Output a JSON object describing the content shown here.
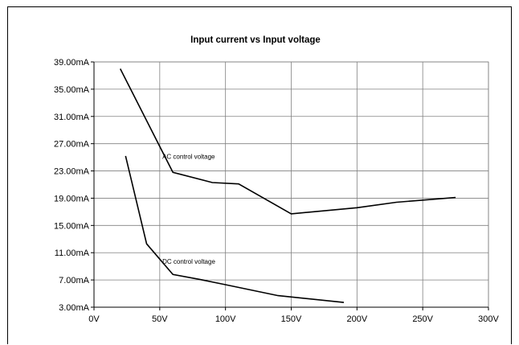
{
  "chart_data": {
    "type": "line",
    "title": "Input current vs Input voltage",
    "xlabel": "",
    "ylabel": "",
    "xlim": [
      0,
      300
    ],
    "ylim": [
      3,
      39
    ],
    "x_ticks": [
      0,
      50,
      100,
      150,
      200,
      250,
      300
    ],
    "x_tick_labels": [
      "0V",
      "50V",
      "100V",
      "150V",
      "200V",
      "250V",
      "300V"
    ],
    "y_ticks": [
      3,
      7,
      11,
      15,
      19,
      23,
      27,
      31,
      35,
      39
    ],
    "y_tick_labels": [
      "3.00mA",
      "7.00mA",
      "11.00mA",
      "15.00mA",
      "19.00mA",
      "23.00mA",
      "27.00mA",
      "31.00mA",
      "35.00mA",
      "39.00mA"
    ],
    "grid": true,
    "series": [
      {
        "name": "AC control voltage",
        "x": [
          20,
          60,
          90,
          110,
          150,
          200,
          230,
          275
        ],
        "y": [
          38,
          22.8,
          21.3,
          21.1,
          16.7,
          17.6,
          18.4,
          19.1
        ]
      },
      {
        "name": "DC control voltage",
        "x": [
          24,
          40,
          60,
          80,
          100,
          140,
          190
        ],
        "y": [
          25.2,
          12.3,
          7.8,
          7.1,
          6.3,
          4.7,
          3.7
        ]
      }
    ],
    "annotations": [
      {
        "text": "AC control voltage",
        "x": 52,
        "y": 24.8
      },
      {
        "text": "DC control voltage",
        "x": 52,
        "y": 9.4
      }
    ]
  }
}
